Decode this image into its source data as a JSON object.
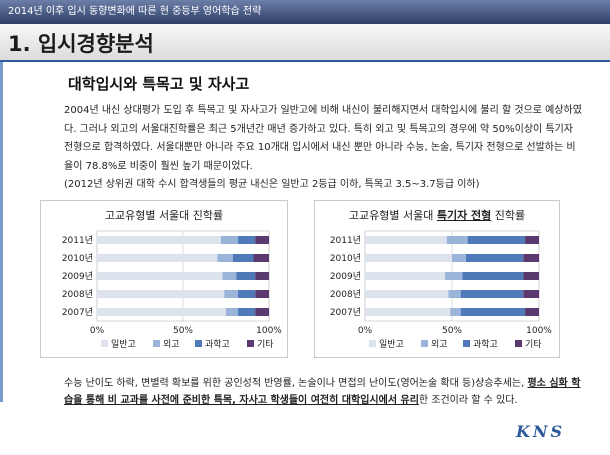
{
  "header": {
    "title": "2014년 이후 입시 동향변화에 따른 현 중등부 영어학습 전략"
  },
  "section": {
    "title": "1. 입시경향분석"
  },
  "subtitle": "대학입시와 특목고 및 자사고",
  "paragraph": "2004년 내신 상대평가 도입 후 특목고 및 자사고가 일반고에 비해 내신이 불리해지면서 대학입시에 불리 할 것으로 예상하였다. 그러나 외고의 서울대진학률은 최근 5개년간 매년 증가하고 있다. 특히 외고 및 특목고의 경우에 약 50%이상이 특기자 전형으로 합격하였다. 서울대뿐만 아니라 주요 10개대 입시에서 내신 뿐만 아니라 수능, 논술, 특기자 전형으로 선발하는 비율이 78.8%로 비중이 훨씬 높기 때문이었다.",
  "note": "(2012년 상위권 대학 수시 합격생들의 평균 내신은 일반고 2등급 이하, 특목고 3.5~3.7등급 이하)",
  "chart_data": [
    {
      "type": "bar",
      "orientation": "horizontal-stacked-percent",
      "title": "고교유형별 서울대 진학률",
      "categories": [
        "2011년",
        "2010년",
        "2009년",
        "2008년",
        "2007년"
      ],
      "series": [
        {
          "name": "일반고",
          "values": [
            72,
            70,
            73,
            74,
            75
          ]
        },
        {
          "name": "외고",
          "values": [
            10,
            9,
            8,
            8,
            7
          ]
        },
        {
          "name": "과학고",
          "values": [
            10,
            12,
            11,
            10,
            10
          ]
        },
        {
          "name": "기타",
          "values": [
            8,
            9,
            8,
            8,
            8
          ]
        }
      ],
      "xticks": [
        "0%",
        "50%",
        "100%"
      ],
      "xlim": [
        0,
        100
      ],
      "legend": "bottom",
      "colors": [
        "#dde3ec",
        "#9bb4d9",
        "#4f79b9",
        "#5a3a6e"
      ]
    },
    {
      "type": "bar",
      "orientation": "horizontal-stacked-percent",
      "title_prefix": "고교유형별 서울대 ",
      "title_emphasis": "특기자 전형",
      "title_suffix": " 진학률",
      "categories": [
        "2011년",
        "2010년",
        "2009년",
        "2008년",
        "2007년"
      ],
      "series": [
        {
          "name": "일반고",
          "values": [
            47,
            50,
            46,
            48,
            49
          ]
        },
        {
          "name": "외고",
          "values": [
            12,
            8,
            10,
            7,
            6
          ]
        },
        {
          "name": "과학고",
          "values": [
            33,
            33,
            35,
            36,
            37
          ]
        },
        {
          "name": "기타",
          "values": [
            8,
            9,
            9,
            9,
            8
          ]
        }
      ],
      "xticks": [
        "0%",
        "50%",
        "100%"
      ],
      "xlim": [
        0,
        100
      ],
      "legend": "bottom",
      "colors": [
        "#dde3ec",
        "#9bb4d9",
        "#4f79b9",
        "#5a3a6e"
      ]
    }
  ],
  "bottom": {
    "part1": "수능 난이도 하락, 변별력 확보를 위한 공인성적 반영률, 논술이나 면접의 난이도(영어논술 확대 등)상승추세는, ",
    "emph1": "평소 심화 학습을 통해 비 교과를 사전에 준비한 특목, 자사고 학생들이 여전히 대학입시에서 유리",
    "part2": "한 조건이라 할 수 있다."
  },
  "logo": "KNS"
}
